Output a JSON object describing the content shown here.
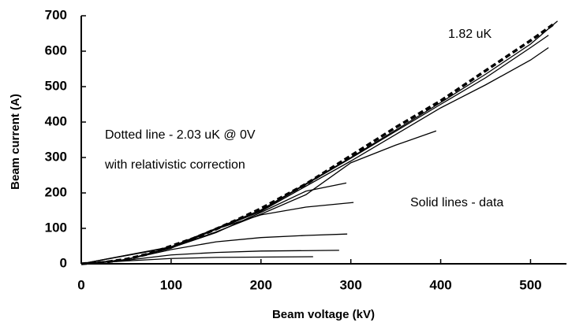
{
  "chart_data": {
    "type": "line",
    "x_label": "Beam voltage  (kV)",
    "y_label": "Beam current  (A)",
    "annotations": [
      "1.82 uK",
      "Dotted line - 2.03 uK @ 0V",
      "with relativistic correction",
      "Solid lines - data"
    ],
    "xlim": [
      0,
      540
    ],
    "ylim": [
      0,
      700
    ],
    "xticks": [
      0,
      100,
      200,
      300,
      400,
      500
    ],
    "yticks": [
      0,
      100,
      200,
      300,
      400,
      500,
      600,
      700
    ],
    "series": [
      {
        "style": "dotted",
        "color": "#000000",
        "x": [
          0,
          25,
          50,
          75,
          100,
          125,
          150,
          175,
          200,
          250,
          300,
          350,
          400,
          450,
          500,
          525
        ],
        "values": [
          0,
          4,
          13,
          28,
          50,
          72,
          98,
          126,
          156,
          225,
          305,
          385,
          460,
          545,
          630,
          675
        ]
      },
      {
        "style": "solid",
        "color": "#000000",
        "x": [
          0,
          100,
          200,
          300,
          400,
          450,
          500,
          530
        ],
        "values": [
          0,
          48,
          152,
          300,
          455,
          535,
          620,
          685
        ]
      },
      {
        "style": "solid",
        "color": "#000000",
        "x": [
          0,
          100,
          200,
          300,
          400,
          450,
          500,
          520
        ],
        "values": [
          0,
          47,
          150,
          298,
          450,
          525,
          610,
          645
        ]
      },
      {
        "style": "solid",
        "color": "#000000",
        "x": [
          0,
          100,
          200,
          300,
          400,
          450,
          500,
          520
        ],
        "values": [
          0,
          46,
          148,
          290,
          440,
          505,
          575,
          610
        ]
      },
      {
        "style": "solid",
        "color": "#000000",
        "x": [
          0,
          50,
          100,
          150,
          200,
          250,
          300,
          350,
          395
        ],
        "values": [
          0,
          12,
          46,
          90,
          140,
          195,
          285,
          335,
          375
        ]
      },
      {
        "style": "solid",
        "color": "#000000",
        "x": [
          0,
          50,
          100,
          150,
          200,
          250,
          295
        ],
        "values": [
          0,
          12,
          45,
          88,
          145,
          205,
          228
        ]
      },
      {
        "style": "solid",
        "color": "#000000",
        "x": [
          0,
          50,
          100,
          150,
          200,
          250,
          303
        ],
        "values": [
          0,
          12,
          44,
          98,
          138,
          160,
          173
        ]
      },
      {
        "style": "solid",
        "color": "#000000",
        "x": [
          0,
          50,
          100,
          150,
          200,
          250,
          296
        ],
        "values": [
          0,
          12,
          40,
          62,
          74,
          80,
          84
        ]
      },
      {
        "style": "solid",
        "color": "#000000",
        "x": [
          0,
          50,
          100,
          150,
          200,
          287
        ],
        "values": [
          0,
          10,
          25,
          32,
          36,
          38
        ]
      },
      {
        "style": "solid",
        "color": "#000000",
        "x": [
          0,
          50,
          100,
          150,
          258
        ],
        "values": [
          0,
          8,
          15,
          18,
          20
        ]
      }
    ]
  }
}
